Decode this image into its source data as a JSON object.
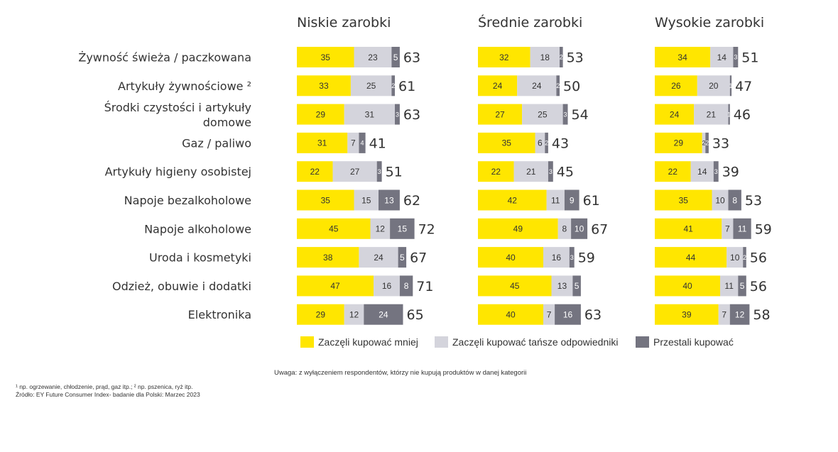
{
  "chart_data": {
    "type": "bar",
    "stacked": true,
    "orientation": "horizontal",
    "panels": [
      "Niskie zarobki",
      "Średnie zarobki",
      "Wysokie zarobki"
    ],
    "categories": [
      "Żywność świeża / paczkowana",
      "Artykuły żywnościowe ²",
      "Środki czystości i artykuły domowe",
      "Gaz / paliwo",
      "Artykuły higieny osobistej",
      "Napoje bezalkoholowe",
      "Napoje alkoholowe",
      "Uroda i kosmetyki",
      "Odzież, obuwie i dodatki",
      "Elektronika"
    ],
    "category_lines": [
      [
        "Żywność świeża / paczkowana"
      ],
      [
        "Artykuły żywnościowe ²"
      ],
      [
        "Środki czystości i artykuły",
        "domowe"
      ],
      [
        "Gaz / paliwo"
      ],
      [
        "Artykuły higieny osobistej"
      ],
      [
        "Napoje bezalkoholowe"
      ],
      [
        "Napoje alkoholowe"
      ],
      [
        "Uroda i kosmetyki"
      ],
      [
        "Odzież, obuwie i dodatki"
      ],
      [
        "Elektronika"
      ]
    ],
    "series_names": [
      "Zaczęli kupować mniej",
      "Zaczęli kupować tańsze odpowiedniki",
      "Przestali kupować"
    ],
    "series_colors": [
      "#FFE600",
      "#D4D4DC",
      "#747480"
    ],
    "values": [
      [
        [
          35,
          23,
          5,
          63
        ],
        [
          33,
          25,
          2,
          61
        ],
        [
          29,
          31,
          3,
          63
        ],
        [
          31,
          7,
          4,
          41
        ],
        [
          22,
          27,
          3,
          51
        ],
        [
          35,
          15,
          13,
          62
        ],
        [
          45,
          12,
          15,
          72
        ],
        [
          38,
          24,
          5,
          67
        ],
        [
          47,
          16,
          8,
          71
        ],
        [
          29,
          12,
          24,
          65
        ]
      ],
      [
        [
          32,
          18,
          2,
          53
        ],
        [
          24,
          24,
          2,
          50
        ],
        [
          27,
          25,
          3,
          54
        ],
        [
          35,
          6,
          2,
          43
        ],
        [
          22,
          21,
          3,
          45
        ],
        [
          42,
          11,
          9,
          61
        ],
        [
          49,
          8,
          10,
          67
        ],
        [
          40,
          16,
          3,
          59
        ],
        [
          45,
          13,
          5,
          null
        ],
        [
          40,
          7,
          16,
          63
        ]
      ],
      [
        [
          34,
          14,
          3,
          51
        ],
        [
          26,
          20,
          1,
          47
        ],
        [
          24,
          21,
          1,
          46
        ],
        [
          29,
          2,
          2,
          33
        ],
        [
          22,
          14,
          3,
          39
        ],
        [
          35,
          10,
          8,
          53
        ],
        [
          41,
          7,
          11,
          59
        ],
        [
          44,
          10,
          2,
          56
        ],
        [
          40,
          11,
          5,
          56
        ],
        [
          39,
          7,
          12,
          58
        ]
      ]
    ],
    "xlim": [
      0,
      100
    ]
  },
  "notes": {
    "uwaga": "Uwaga: z wyłączeniem respondentów, którzy nie kupują produktów w danej kategorii",
    "footnote": "¹ np. ogrzewanie, chłodzenie, prąd, gaz itp.; ² np. pszenica, ryż itp.",
    "source": "Źródło: EY Future Consumer Index- badanie dla Polski: Marzec 2023"
  }
}
